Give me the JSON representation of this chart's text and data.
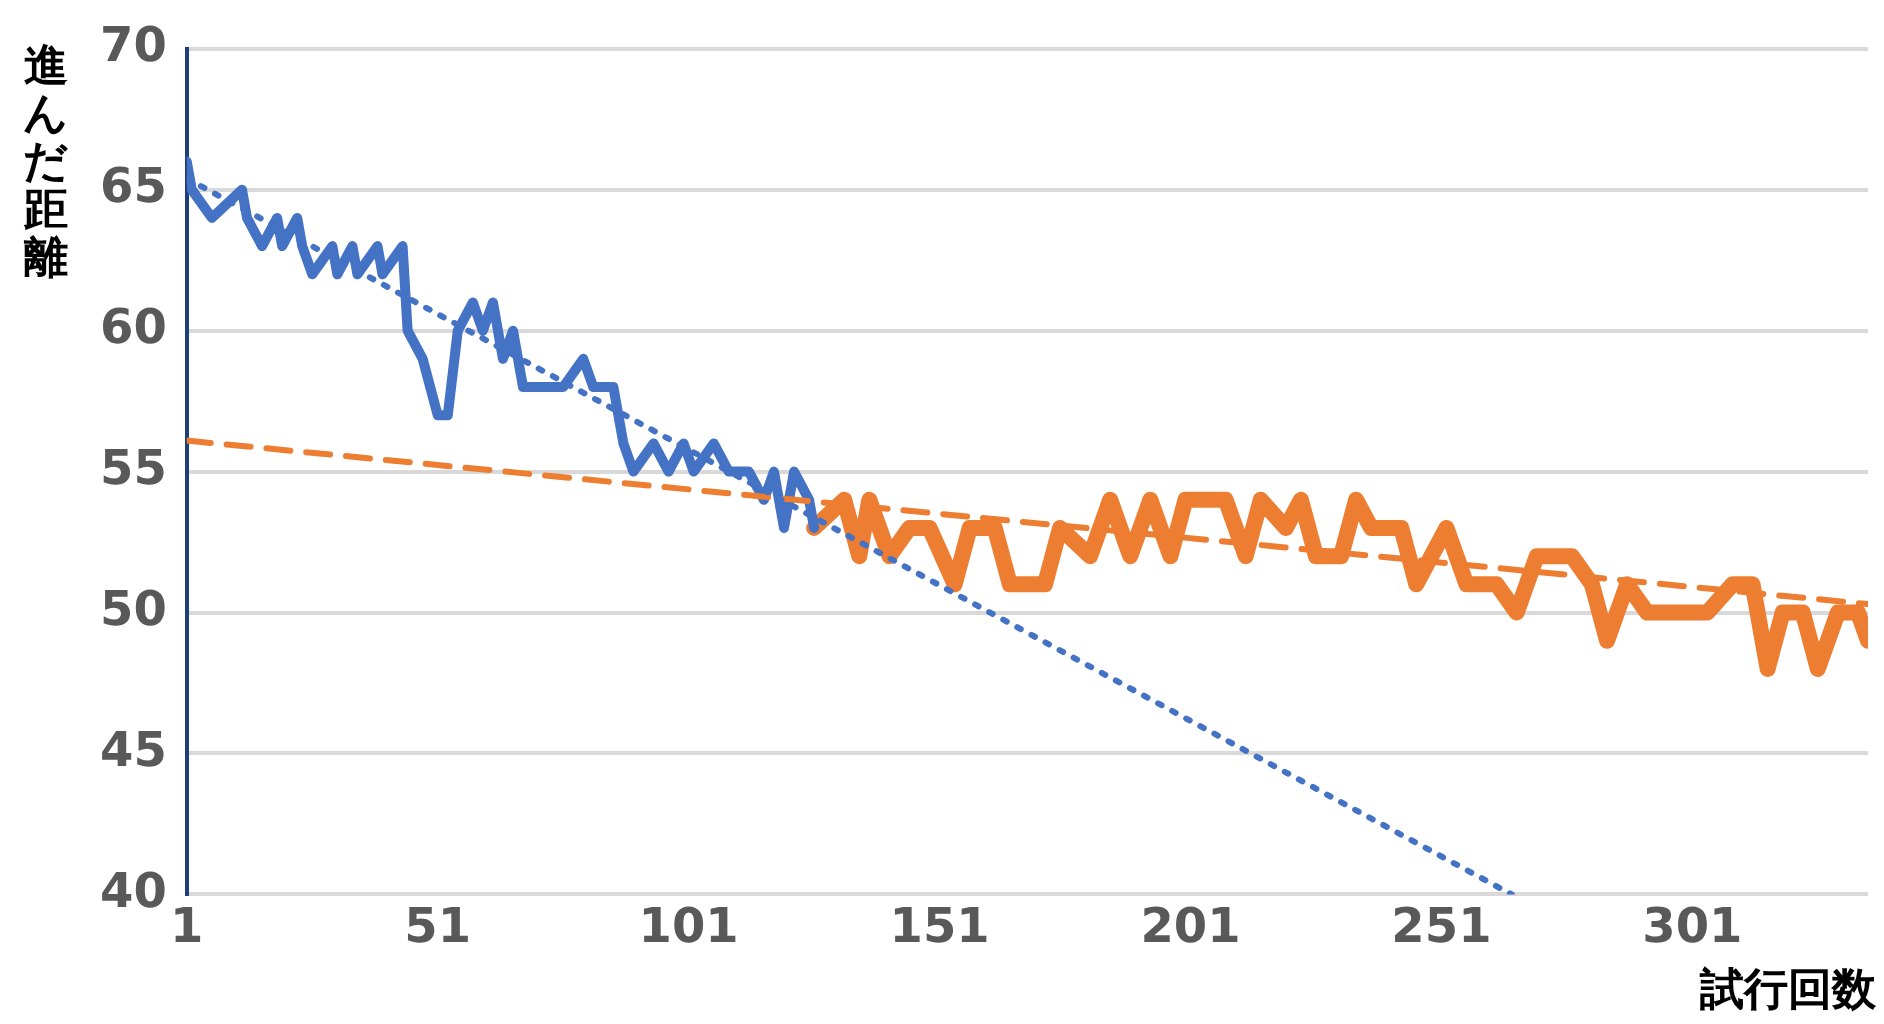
{
  "chart_data": {
    "type": "line",
    "xlabel": "試行回数",
    "ylabel": "進んだ距離",
    "xlim": [
      1,
      336
    ],
    "xticks": [
      1,
      51,
      101,
      151,
      201,
      251,
      301
    ],
    "ylim": [
      40,
      70
    ],
    "yticks": [
      40,
      45,
      50,
      55,
      60,
      65,
      70
    ],
    "grid": "y",
    "legend": false,
    "marker": "none",
    "series": [
      {
        "color": "#4472c4",
        "x": [
          1,
          2,
          6,
          12,
          13,
          16,
          19,
          20,
          23,
          24,
          26,
          30,
          31,
          34,
          35,
          39,
          40,
          44,
          45,
          48,
          51,
          53,
          55,
          58,
          60,
          62,
          64,
          66,
          68,
          71,
          76,
          80,
          82,
          86,
          88,
          90,
          94,
          97,
          100,
          102,
          106,
          109,
          113,
          116,
          118,
          120,
          122,
          125,
          126
        ],
        "values": [
          66,
          65,
          64,
          65,
          64,
          63,
          64,
          63,
          64,
          63,
          62,
          63,
          62,
          63,
          62,
          63,
          62,
          63,
          60,
          59,
          57,
          57,
          60,
          61,
          60,
          61,
          59,
          60,
          58,
          58,
          58,
          59,
          58,
          58,
          56,
          55,
          56,
          55,
          56,
          55,
          56,
          55,
          55,
          54,
          55,
          53,
          55,
          54,
          53
        ]
      },
      {
        "color": "#ed7d31",
        "x": [
          126,
          132,
          135,
          137,
          141,
          145,
          149,
          154,
          157,
          162,
          165,
          172,
          175,
          181,
          185,
          189,
          193,
          197,
          200,
          208,
          212,
          215,
          220,
          223,
          226,
          231,
          234,
          237,
          243,
          246,
          252,
          256,
          262,
          266,
          270,
          277,
          281,
          284,
          288,
          292,
          298,
          304,
          309,
          313,
          316,
          319,
          323,
          326,
          330,
          334,
          336
        ],
        "values": [
          53,
          54,
          52,
          54,
          52,
          53,
          53,
          51,
          53,
          53,
          51,
          51,
          53,
          52,
          54,
          52,
          54,
          52,
          54,
          54,
          52,
          54,
          53,
          54,
          52,
          52,
          54,
          53,
          53,
          51,
          53,
          51,
          51,
          50,
          52,
          52,
          51,
          49,
          51,
          50,
          50,
          50,
          51,
          51,
          48,
          50,
          50,
          48,
          50,
          50,
          49
        ]
      },
      {
        "color": "#4472c4",
        "line_style": "dotted",
        "x": [
          1,
          265
        ],
        "values": [
          65.4,
          40
        ]
      },
      {
        "color": "#ed7d31",
        "line_style": "dashed",
        "x": [
          1,
          336
        ],
        "values": [
          56.1,
          50.3
        ]
      }
    ]
  }
}
